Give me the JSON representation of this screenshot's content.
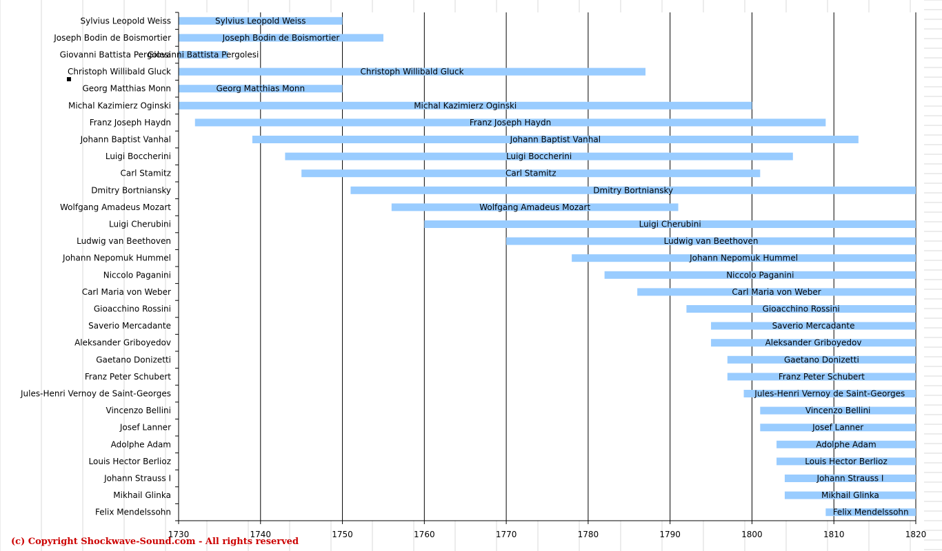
{
  "copyright": "(c) Copyright Shockwave-Sound.com - All rights reserved",
  "colors": {
    "bar": "#99ccff",
    "gridline": "#000000",
    "axis": "#000000",
    "sheet_grid": "#d8d8d8",
    "copyright": "#cc0000"
  },
  "chart_data": {
    "type": "bar",
    "orientation": "horizontal-floating",
    "title": "",
    "xlabel": "",
    "ylabel": "",
    "xlim": [
      1730,
      1820
    ],
    "x_ticks": [
      1730,
      1740,
      1750,
      1760,
      1770,
      1780,
      1790,
      1800,
      1810,
      1820
    ],
    "grid": "vertical major gridlines",
    "legend": "none",
    "categories": [
      "Sylvius Leopold Weiss",
      "Joseph Bodin de Boismortier",
      "Giovanni Battista Pergolesi",
      "Christoph Willibald Gluck",
      "Georg Matthias Monn",
      "Michal Kazimierz Oginski",
      "Franz Joseph Haydn",
      "Johann Baptist Vanhal",
      "Luigi Boccherini",
      "Carl Stamitz",
      "Dmitry Bortniansky",
      "Wolfgang Amadeus Mozart",
      "Luigi Cherubini",
      "Ludwig van Beethoven",
      "Johann Nepomuk Hummel",
      "Niccolo Paganini",
      "Carl Maria von Weber",
      "Gioacchino Rossini",
      "Saverio Mercadante",
      "Aleksander Griboyedov",
      "Gaetano Donizetti",
      "Franz Peter Schubert",
      "Jules-Henri Vernoy de Saint-Georges",
      "Vincenzo Bellini",
      "Josef Lanner",
      "Adolphe Adam",
      "Louis Hector Berlioz",
      "Johann Strauss I",
      "Mikhail Glinka",
      "Felix Mendelssohn"
    ],
    "start": [
      1730,
      1730,
      1730,
      1730,
      1730,
      1730,
      1732,
      1739,
      1743,
      1745,
      1751,
      1756,
      1760,
      1770,
      1778,
      1782,
      1786,
      1792,
      1795,
      1795,
      1797,
      1797,
      1799,
      1801,
      1801,
      1803,
      1803,
      1804,
      1804,
      1809
    ],
    "end": [
      1750,
      1755,
      1736,
      1787,
      1750,
      1800,
      1809,
      1813,
      1805,
      1801,
      1820,
      1791,
      1820,
      1820,
      1820,
      1820,
      1820,
      1820,
      1820,
      1820,
      1820,
      1820,
      1820,
      1820,
      1820,
      1820,
      1820,
      1820,
      1820,
      1820
    ]
  }
}
